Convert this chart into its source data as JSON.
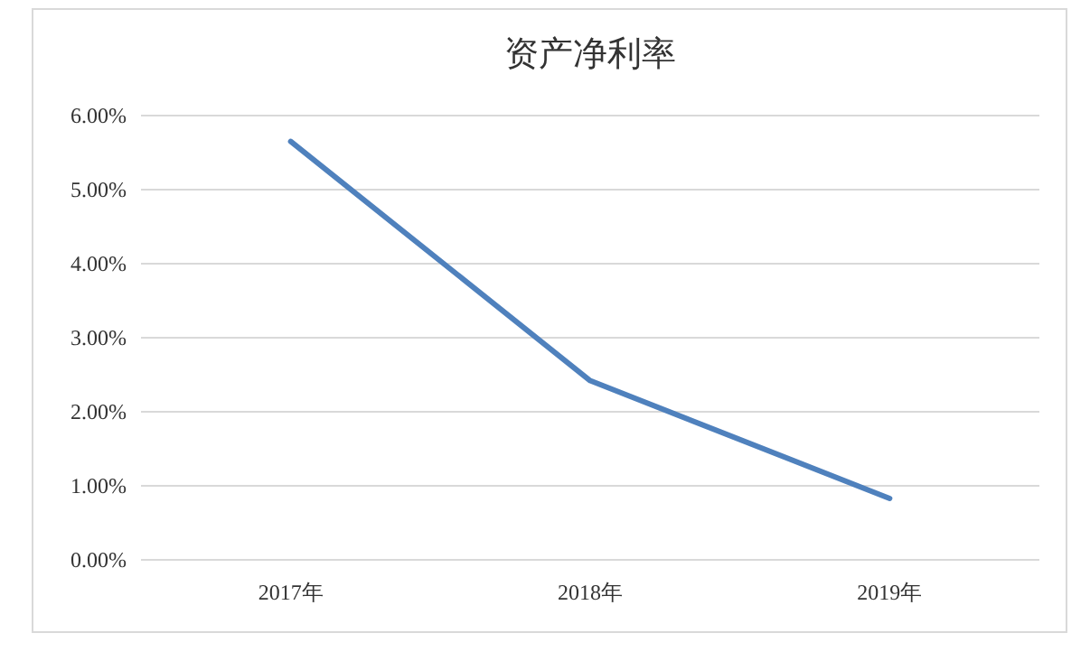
{
  "chart_data": {
    "type": "line",
    "title": "资产净利率",
    "categories": [
      "2017年",
      "2018年",
      "2019年"
    ],
    "series": [
      {
        "color": "#4f81bd",
        "values": [
          5.65,
          2.42,
          0.83
        ]
      }
    ],
    "ylim": [
      0,
      6
    ],
    "yticks": [
      {
        "value": 0,
        "label": "0.00%"
      },
      {
        "value": 1,
        "label": "1.00%"
      },
      {
        "value": 2,
        "label": "2.00%"
      },
      {
        "value": 3,
        "label": "3.00%"
      },
      {
        "value": 4,
        "label": "4.00%"
      },
      {
        "value": 5,
        "label": "5.00%"
      },
      {
        "value": 6,
        "label": "6.00%"
      }
    ],
    "grid": "y",
    "marker": "none",
    "line_style": "solid"
  }
}
